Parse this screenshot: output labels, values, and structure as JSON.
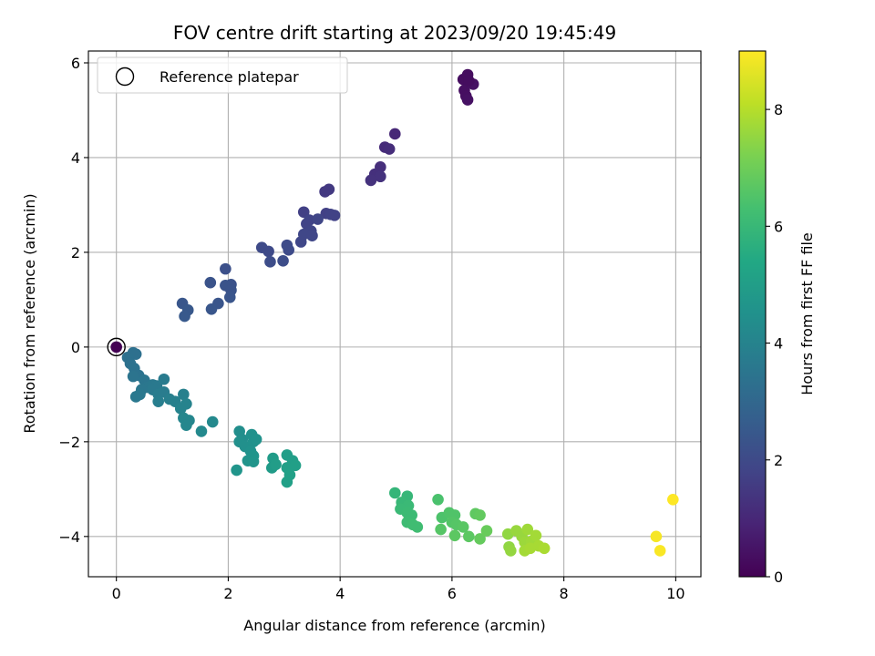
{
  "chart_data": {
    "type": "scatter",
    "title": "FOV centre drift starting at 2023/09/20 19:45:49",
    "xlabel": "Angular distance from reference (arcmin)",
    "ylabel": "Rotation from reference (arcmin)",
    "xlim": [
      -0.5,
      10.45
    ],
    "ylim": [
      -4.85,
      6.25
    ],
    "xticks": [
      0,
      2,
      4,
      6,
      8,
      10
    ],
    "yticks": [
      -4,
      -2,
      0,
      2,
      4,
      6
    ],
    "grid": true,
    "legend": {
      "placement": "top-left",
      "entries": [
        "Reference platepar"
      ]
    },
    "reference_point": {
      "x": 0,
      "y": 0,
      "label": "Reference platepar"
    },
    "colorbar": {
      "label": "Hours from first FF file",
      "colormap": "viridis",
      "range": [
        0,
        9.0
      ],
      "ticks": [
        0,
        2,
        4,
        6,
        8
      ]
    },
    "series": [
      {
        "points": [
          [
            0.0,
            0.0,
            0.0
          ],
          [
            6.2,
            5.65,
            0.3
          ],
          [
            6.28,
            5.75,
            0.3
          ],
          [
            6.22,
            5.42,
            0.35
          ],
          [
            6.25,
            5.3,
            0.35
          ],
          [
            6.28,
            5.22,
            0.4
          ],
          [
            6.38,
            5.55,
            0.4
          ],
          [
            6.3,
            5.62,
            0.3
          ],
          [
            4.98,
            4.5,
            1.0
          ],
          [
            4.8,
            4.22,
            1.1
          ],
          [
            4.88,
            4.18,
            1.15
          ],
          [
            4.72,
            3.8,
            1.2
          ],
          [
            4.62,
            3.65,
            1.25
          ],
          [
            4.72,
            3.6,
            1.3
          ],
          [
            4.55,
            3.52,
            1.3
          ],
          [
            3.8,
            3.33,
            1.5
          ],
          [
            3.73,
            3.28,
            1.5
          ],
          [
            3.35,
            2.85,
            1.7
          ],
          [
            3.75,
            2.82,
            1.7
          ],
          [
            3.83,
            2.8,
            1.75
          ],
          [
            3.9,
            2.78,
            1.75
          ],
          [
            3.45,
            2.68,
            1.8
          ],
          [
            3.4,
            2.6,
            1.8
          ],
          [
            3.6,
            2.7,
            1.85
          ],
          [
            3.48,
            2.45,
            1.85
          ],
          [
            3.35,
            2.38,
            1.9
          ],
          [
            3.5,
            2.35,
            1.9
          ],
          [
            3.3,
            2.22,
            1.9
          ],
          [
            2.6,
            2.1,
            2.0
          ],
          [
            2.72,
            2.02,
            2.0
          ],
          [
            3.05,
            2.15,
            2.05
          ],
          [
            3.08,
            2.05,
            2.05
          ],
          [
            2.75,
            1.8,
            2.1
          ],
          [
            2.98,
            1.82,
            2.1
          ],
          [
            1.95,
            1.65,
            2.2
          ],
          [
            2.05,
            1.32,
            2.25
          ],
          [
            1.95,
            1.3,
            2.3
          ],
          [
            1.68,
            1.36,
            2.3
          ],
          [
            2.05,
            1.2,
            2.3
          ],
          [
            2.03,
            1.05,
            2.35
          ],
          [
            1.82,
            0.92,
            2.35
          ],
          [
            1.7,
            0.8,
            2.4
          ],
          [
            1.18,
            0.92,
            2.4
          ],
          [
            1.28,
            0.78,
            2.45
          ],
          [
            1.22,
            0.65,
            2.5
          ],
          [
            0.3,
            -0.12,
            3.3
          ],
          [
            0.35,
            -0.15,
            3.3
          ],
          [
            0.2,
            -0.22,
            3.35
          ],
          [
            0.25,
            -0.35,
            3.35
          ],
          [
            0.32,
            -0.45,
            3.4
          ],
          [
            0.4,
            -0.6,
            3.4
          ],
          [
            0.3,
            -0.62,
            3.45
          ],
          [
            0.5,
            -0.7,
            3.5
          ],
          [
            0.55,
            -0.85,
            3.55
          ],
          [
            0.45,
            -0.9,
            3.55
          ],
          [
            0.42,
            -1.0,
            3.6
          ],
          [
            0.35,
            -1.05,
            3.6
          ],
          [
            0.65,
            -0.8,
            3.6
          ],
          [
            0.72,
            -0.82,
            3.65
          ],
          [
            0.65,
            -0.9,
            3.65
          ],
          [
            0.85,
            -0.68,
            3.7
          ],
          [
            0.75,
            -1.0,
            3.75
          ],
          [
            0.85,
            -0.95,
            3.75
          ],
          [
            0.75,
            -1.15,
            3.8
          ],
          [
            0.95,
            -1.1,
            3.85
          ],
          [
            1.05,
            -1.15,
            3.9
          ],
          [
            1.2,
            -1.0,
            3.9
          ],
          [
            1.25,
            -1.2,
            4.0
          ],
          [
            1.15,
            -1.3,
            4.0
          ],
          [
            1.2,
            -1.5,
            4.1
          ],
          [
            1.3,
            -1.55,
            4.1
          ],
          [
            1.25,
            -1.65,
            4.15
          ],
          [
            1.72,
            -1.58,
            4.2
          ],
          [
            1.52,
            -1.78,
            4.2
          ],
          [
            2.2,
            -1.78,
            4.4
          ],
          [
            2.25,
            -1.95,
            4.4
          ],
          [
            2.2,
            -2.0,
            4.45
          ],
          [
            2.3,
            -2.1,
            4.45
          ],
          [
            2.42,
            -1.85,
            4.5
          ],
          [
            2.45,
            -2.0,
            4.5
          ],
          [
            2.5,
            -1.95,
            4.55
          ],
          [
            2.4,
            -2.2,
            4.55
          ],
          [
            2.45,
            -2.3,
            4.6
          ],
          [
            2.35,
            -2.4,
            4.6
          ],
          [
            2.45,
            -2.42,
            4.65
          ],
          [
            2.15,
            -2.6,
            4.65
          ],
          [
            2.8,
            -2.35,
            4.9
          ],
          [
            2.78,
            -2.55,
            4.9
          ],
          [
            2.85,
            -2.48,
            4.95
          ],
          [
            3.05,
            -2.28,
            5.0
          ],
          [
            3.15,
            -2.4,
            5.0
          ],
          [
            3.2,
            -2.5,
            5.05
          ],
          [
            3.05,
            -2.55,
            5.05
          ],
          [
            3.1,
            -2.7,
            5.1
          ],
          [
            3.05,
            -2.85,
            5.1
          ],
          [
            4.98,
            -3.08,
            5.9
          ],
          [
            5.2,
            -3.15,
            5.95
          ],
          [
            5.1,
            -3.28,
            6.0
          ],
          [
            5.22,
            -3.35,
            6.05
          ],
          [
            5.08,
            -3.42,
            6.05
          ],
          [
            5.2,
            -3.5,
            6.1
          ],
          [
            5.28,
            -3.55,
            6.1
          ],
          [
            5.2,
            -3.7,
            6.15
          ],
          [
            5.3,
            -3.75,
            6.2
          ],
          [
            5.38,
            -3.8,
            6.2
          ],
          [
            5.75,
            -3.22,
            6.4
          ],
          [
            5.82,
            -3.6,
            6.45
          ],
          [
            5.95,
            -3.5,
            6.5
          ],
          [
            6.05,
            -3.55,
            6.5
          ],
          [
            6.0,
            -3.7,
            6.55
          ],
          [
            6.08,
            -3.75,
            6.6
          ],
          [
            5.8,
            -3.85,
            6.6
          ],
          [
            6.2,
            -3.8,
            6.65
          ],
          [
            6.05,
            -3.98,
            6.7
          ],
          [
            6.3,
            -4.0,
            6.7
          ],
          [
            6.42,
            -3.52,
            6.75
          ],
          [
            6.5,
            -3.55,
            6.8
          ],
          [
            6.5,
            -4.05,
            6.85
          ],
          [
            6.62,
            -3.88,
            6.9
          ],
          [
            7.0,
            -3.95,
            7.5
          ],
          [
            7.02,
            -4.22,
            7.5
          ],
          [
            7.05,
            -4.3,
            7.55
          ],
          [
            7.15,
            -3.88,
            7.6
          ],
          [
            7.25,
            -4.0,
            7.6
          ],
          [
            7.3,
            -4.12,
            7.65
          ],
          [
            7.35,
            -3.85,
            7.7
          ],
          [
            7.42,
            -4.1,
            7.7
          ],
          [
            7.5,
            -3.98,
            7.75
          ],
          [
            7.3,
            -4.3,
            7.75
          ],
          [
            7.4,
            -4.25,
            7.8
          ],
          [
            7.55,
            -4.2,
            7.8
          ],
          [
            7.65,
            -4.25,
            7.85
          ],
          [
            9.65,
            -4.0,
            8.9
          ],
          [
            9.72,
            -4.3,
            8.95
          ],
          [
            9.95,
            -3.22,
            9.0
          ]
        ]
      }
    ]
  }
}
